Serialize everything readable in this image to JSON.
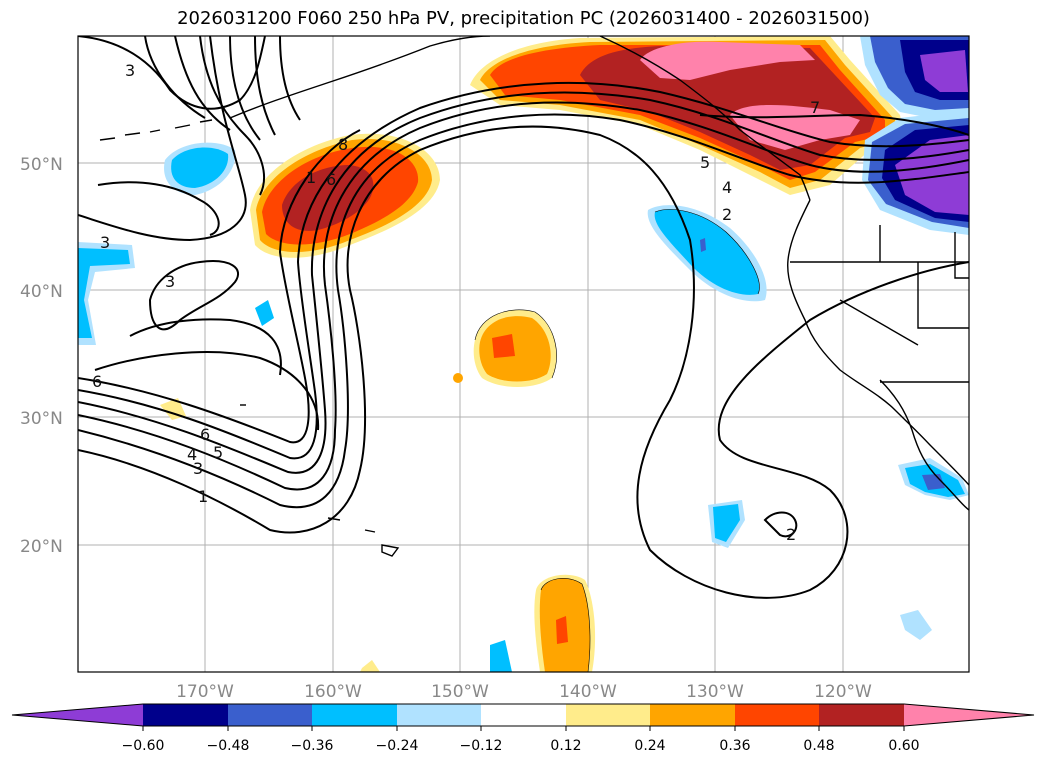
{
  "title": "2026031200 F060 250 hPa PV, precipitation PC (2026031400 - 2026031500)",
  "lat_labels": [
    "50°N",
    "40°N",
    "30°N",
    "20°N"
  ],
  "lon_labels": [
    "170°W",
    "160°W",
    "150°W",
    "140°W",
    "130°W",
    "120°W"
  ],
  "contour_labels": [
    "3",
    "8",
    "1",
    "6",
    "5",
    "4",
    "2",
    "7",
    "3",
    "3",
    "6",
    "6",
    "5",
    "4",
    "3",
    "1",
    "2"
  ],
  "colorbar": {
    "colors": [
      "#8e3cd6",
      "#00008b",
      "#3a5fcd",
      "#00bfff",
      "#b0e2ff",
      "#ffffff",
      "#ffec8b",
      "#ffa500",
      "#ff4500",
      "#b22222",
      "#ff82ab"
    ],
    "ticks": [
      "−0.60",
      "−0.48",
      "−0.36",
      "−0.24",
      "−0.12",
      "0.12",
      "0.24",
      "0.36",
      "0.48",
      "0.60"
    ]
  }
}
